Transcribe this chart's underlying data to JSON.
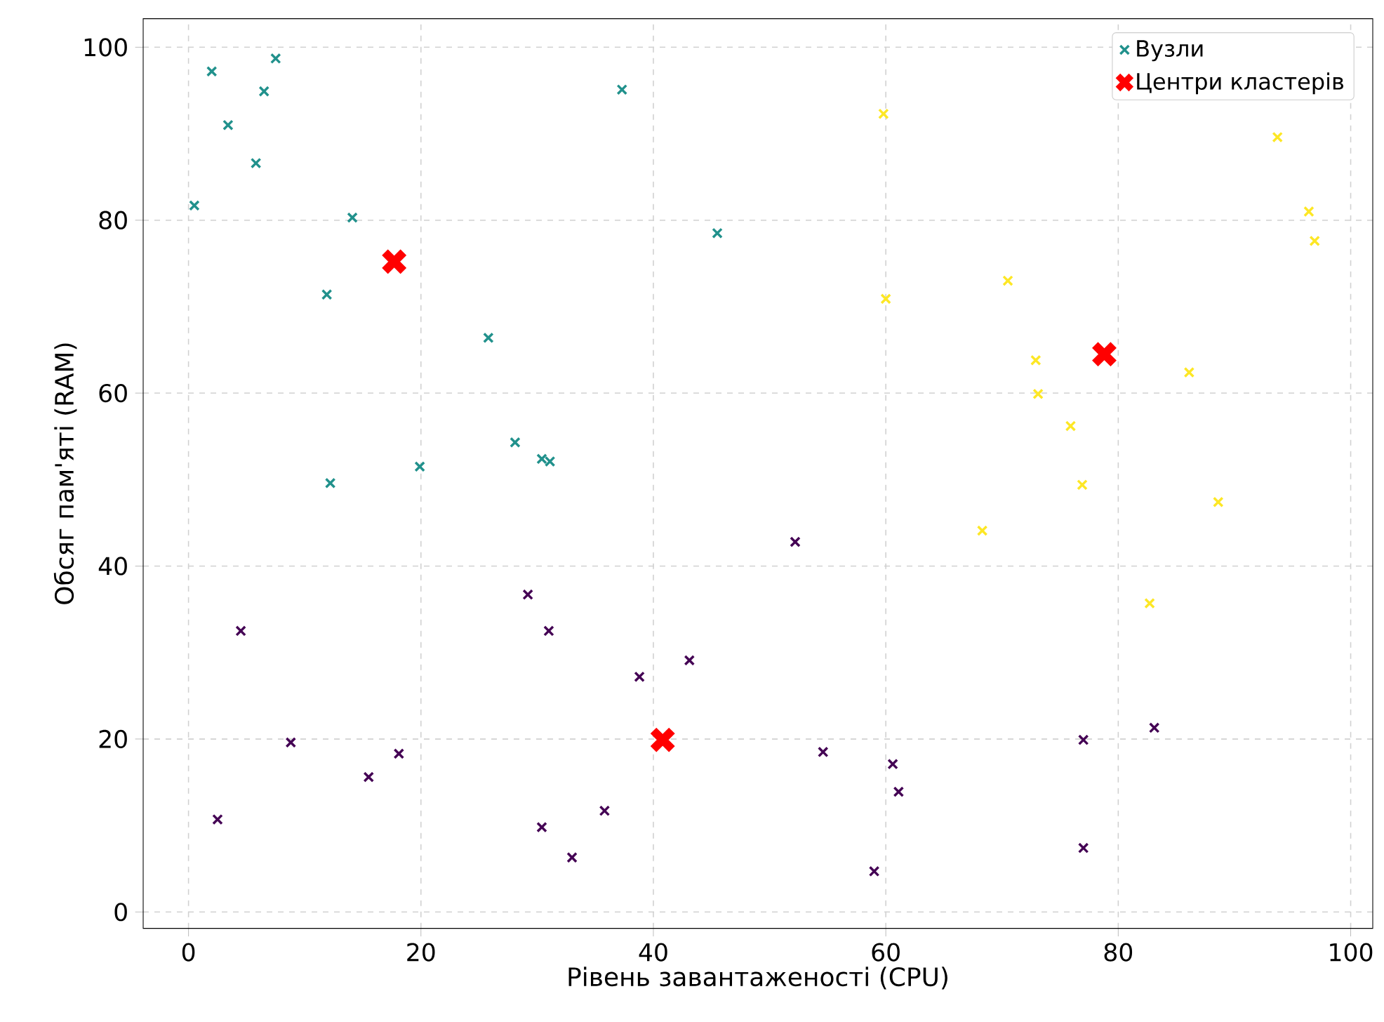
{
  "chart_data": {
    "type": "scatter",
    "xlabel": "Рівень завантаженості (CPU)",
    "ylabel": "Обсяг пам'яті (RAM)",
    "xlim": [
      -3.9,
      101.9
    ],
    "ylim": [
      -1.9,
      103.3
    ],
    "xticks": [
      0,
      20,
      40,
      60,
      80,
      100
    ],
    "yticks": [
      0,
      20,
      40,
      60,
      80,
      100
    ],
    "grid": true,
    "legend": "top right",
    "marker": "cross",
    "series": [
      {
        "name": "Вузли",
        "x": [
          0.5,
          2.0,
          3.4,
          6.5,
          7.5,
          5.8,
          14.1,
          11.9,
          12.2,
          19.9,
          25.8,
          28.1,
          30.4,
          31.1,
          37.3,
          45.5,
          59.8,
          60.0,
          70.5,
          72.9,
          73.1,
          75.9,
          76.9,
          68.3,
          86.1,
          88.6,
          82.7,
          93.7,
          96.4,
          96.9,
          52.2,
          4.5,
          29.2,
          31.0,
          38.8,
          43.1,
          8.8,
          2.5,
          15.5,
          18.1,
          30.4,
          33.0,
          35.8,
          54.6,
          60.6,
          61.1,
          59.0,
          77.0,
          77.0,
          83.1
        ],
        "values": [
          81.7,
          97.2,
          91.0,
          94.9,
          98.7,
          86.6,
          80.3,
          71.4,
          49.6,
          51.5,
          66.4,
          54.3,
          52.4,
          52.1,
          95.1,
          78.5,
          92.3,
          70.9,
          73.0,
          63.8,
          59.9,
          56.2,
          49.4,
          44.1,
          62.4,
          47.4,
          35.7,
          89.6,
          81.0,
          77.6,
          42.8,
          32.5,
          36.7,
          32.5,
          27.2,
          29.1,
          19.6,
          10.7,
          15.6,
          18.3,
          9.8,
          6.3,
          11.7,
          18.5,
          17.1,
          13.9,
          4.7,
          19.9,
          7.4,
          21.3
        ],
        "colors": [
          "#21918c",
          "#21918c",
          "#21918c",
          "#21918c",
          "#21918c",
          "#21918c",
          "#21918c",
          "#21918c",
          "#21918c",
          "#21918c",
          "#21918c",
          "#21918c",
          "#21918c",
          "#21918c",
          "#21918c",
          "#21918c",
          "#fde725",
          "#fde725",
          "#fde725",
          "#fde725",
          "#fde725",
          "#fde725",
          "#fde725",
          "#fde725",
          "#fde725",
          "#fde725",
          "#fde725",
          "#fde725",
          "#fde725",
          "#fde725",
          "#440154",
          "#440154",
          "#440154",
          "#440154",
          "#440154",
          "#440154",
          "#440154",
          "#440154",
          "#440154",
          "#440154",
          "#440154",
          "#440154",
          "#440154",
          "#440154",
          "#440154",
          "#440154",
          "#440154",
          "#440154",
          "#440154",
          "#440154"
        ]
      },
      {
        "name": "Центри кластерів",
        "color": "#ff0000",
        "x": [
          17.7,
          40.8,
          78.8
        ],
        "values": [
          75.2,
          19.9,
          64.5
        ]
      }
    ]
  }
}
